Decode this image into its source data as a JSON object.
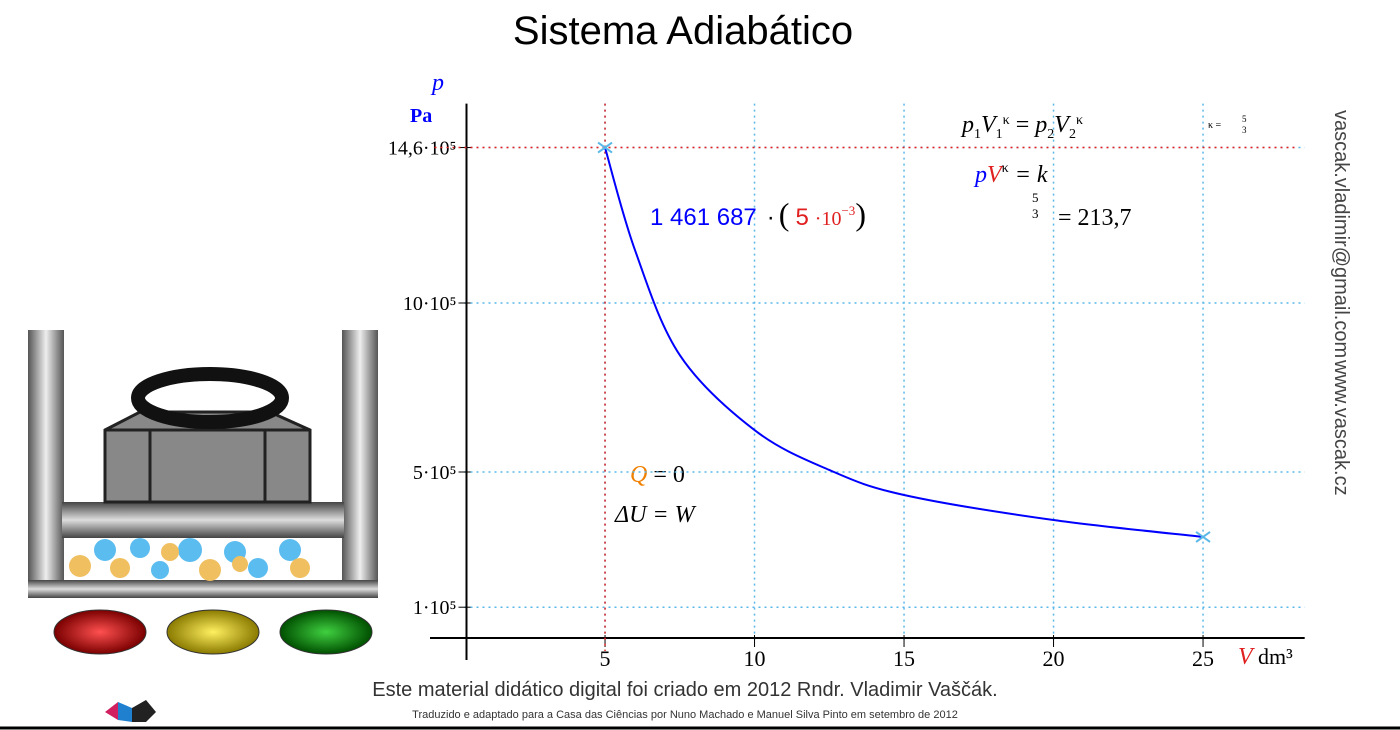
{
  "title": "Sistema Adiabático",
  "chart_data": {
    "type": "line",
    "y_label": "p",
    "y_unit": "Pa",
    "x_label": "V",
    "x_unit": "dm³",
    "x": [
      5,
      6,
      7.5,
      10,
      12.5,
      15,
      20,
      25
    ],
    "series": [
      {
        "color": "#0000ff",
        "values": [
          1460000,
          1157000,
          846000,
          624000,
          506000,
          432000,
          358000,
          308000
        ]
      }
    ],
    "xlim": [
      0.3,
      28.4
    ],
    "ylim": [
      0,
      1590000
    ],
    "xticks": [
      5,
      10,
      15,
      20,
      25
    ],
    "yticks": [
      {
        "value": 1460000,
        "label": "14,6·10⁵"
      },
      {
        "value": 1000000,
        "label": "10·10⁵"
      },
      {
        "value": 500000,
        "label": "5·10⁵"
      },
      {
        "value": 100000,
        "label": "1·10⁵"
      }
    ],
    "grid": true,
    "grid_color": "#5ab8e8",
    "marker_color": "#e02020"
  },
  "formulas": {
    "law": [
      "p",
      "1",
      "V",
      "1",
      "κ",
      " = ",
      "p",
      "2",
      "V",
      "2",
      "κ"
    ],
    "kappa": [
      "κ =",
      "5",
      "3"
    ],
    "invariant": [
      "p",
      "V",
      "κ",
      " = k"
    ],
    "constant": [
      "1 461 687",
      "·",
      "(",
      "5",
      "·10",
      "−3",
      ")",
      "5",
      "3",
      "= 213,7"
    ],
    "heat": [
      "Q",
      " = 0"
    ],
    "energy": "ΔU = W"
  },
  "watermark": [
    "vascak.vladimir@gmail.com",
    "www.vascak.cz"
  ],
  "credits": [
    "Este material didático digital foi criado em 2012 Rndr. Vladimir Vaščák.",
    "Traduzido e adaptado para a Casa das Ciências por Nuno Machado e Manuel Silva Pinto em setembro de 2012"
  ]
}
